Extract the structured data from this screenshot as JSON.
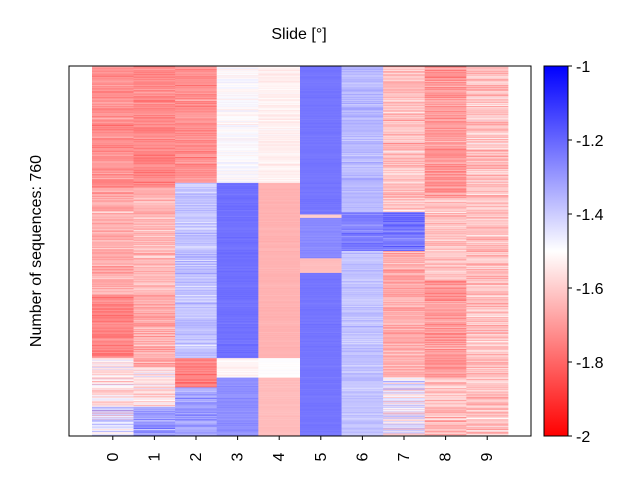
{
  "chart_data": {
    "type": "heatmap",
    "title": "Slide [°]",
    "ylabel": "Number of sequences: 760",
    "xlabel": "",
    "x_tick_labels": [
      "0",
      "1",
      "2",
      "3",
      "4",
      "5",
      "6",
      "7",
      "8",
      "9"
    ],
    "rows": 760,
    "colorbar": {
      "min": -2,
      "max": -1,
      "ticks": [
        -1,
        -1.2,
        -1.4,
        -1.6,
        -1.8,
        -2
      ],
      "tick_labels": [
        "-1",
        "-1.2",
        "-1.4",
        "-1.6",
        "-1.8",
        "-2"
      ],
      "colormap": "bwr",
      "low_color": "#ff0000",
      "mid_color": "#ffffff",
      "high_color": "#0000ff"
    },
    "columns": [
      {
        "label": "0",
        "segments": [
          {
            "from": 0,
            "to": 250,
            "mean": -1.72,
            "spread": 0.12
          },
          {
            "from": 250,
            "to": 470,
            "mean": -1.66,
            "spread": 0.14
          },
          {
            "from": 470,
            "to": 600,
            "mean": -1.74,
            "spread": 0.12
          },
          {
            "from": 600,
            "to": 700,
            "mean": -1.55,
            "spread": 0.22
          },
          {
            "from": 700,
            "to": 760,
            "mean": -1.45,
            "spread": 0.28
          }
        ]
      },
      {
        "label": "1",
        "segments": [
          {
            "from": 0,
            "to": 250,
            "mean": -1.74,
            "spread": 0.12
          },
          {
            "from": 250,
            "to": 470,
            "mean": -1.64,
            "spread": 0.14
          },
          {
            "from": 470,
            "to": 620,
            "mean": -1.66,
            "spread": 0.14
          },
          {
            "from": 620,
            "to": 700,
            "mean": -1.55,
            "spread": 0.2
          },
          {
            "from": 700,
            "to": 760,
            "mean": -1.3,
            "spread": 0.22
          }
        ]
      },
      {
        "label": "2",
        "segments": [
          {
            "from": 0,
            "to": 240,
            "mean": -1.72,
            "spread": 0.12
          },
          {
            "from": 240,
            "to": 600,
            "mean": -1.38,
            "spread": 0.12
          },
          {
            "from": 600,
            "to": 660,
            "mean": -1.75,
            "spread": 0.1
          },
          {
            "from": 660,
            "to": 760,
            "mean": -1.3,
            "spread": 0.14
          }
        ]
      },
      {
        "label": "3",
        "segments": [
          {
            "from": 0,
            "to": 240,
            "mean": -1.5,
            "spread": 0.08
          },
          {
            "from": 240,
            "to": 600,
            "mean": -1.22,
            "spread": 0.03
          },
          {
            "from": 600,
            "to": 640,
            "mean": -1.52,
            "spread": 0.06
          },
          {
            "from": 640,
            "to": 760,
            "mean": -1.28,
            "spread": 0.05
          }
        ]
      },
      {
        "label": "4",
        "segments": [
          {
            "from": 0,
            "to": 240,
            "mean": -1.53,
            "spread": 0.06
          },
          {
            "from": 240,
            "to": 600,
            "mean": -1.65,
            "spread": 0.02
          },
          {
            "from": 600,
            "to": 640,
            "mean": -1.5,
            "spread": 0.02
          },
          {
            "from": 640,
            "to": 760,
            "mean": -1.63,
            "spread": 0.02
          }
        ]
      },
      {
        "label": "5",
        "segments": [
          {
            "from": 0,
            "to": 305,
            "mean": -1.23,
            "spread": 0.02
          },
          {
            "from": 305,
            "to": 312,
            "mean": -1.6,
            "spread": 0.02
          },
          {
            "from": 312,
            "to": 395,
            "mean": -1.27,
            "spread": 0.03
          },
          {
            "from": 395,
            "to": 425,
            "mean": -1.63,
            "spread": 0.02
          },
          {
            "from": 425,
            "to": 760,
            "mean": -1.23,
            "spread": 0.02
          }
        ]
      },
      {
        "label": "6",
        "segments": [
          {
            "from": 0,
            "to": 300,
            "mean": -1.36,
            "spread": 0.08
          },
          {
            "from": 300,
            "to": 380,
            "mean": -1.25,
            "spread": 0.12
          },
          {
            "from": 380,
            "to": 760,
            "mean": -1.38,
            "spread": 0.08
          }
        ]
      },
      {
        "label": "7",
        "segments": [
          {
            "from": 0,
            "to": 300,
            "mean": -1.62,
            "spread": 0.18
          },
          {
            "from": 300,
            "to": 380,
            "mean": -1.22,
            "spread": 0.12
          },
          {
            "from": 380,
            "to": 640,
            "mean": -1.66,
            "spread": 0.14
          },
          {
            "from": 640,
            "to": 760,
            "mean": -1.5,
            "spread": 0.3
          }
        ]
      },
      {
        "label": "8",
        "segments": [
          {
            "from": 0,
            "to": 270,
            "mean": -1.7,
            "spread": 0.14
          },
          {
            "from": 270,
            "to": 440,
            "mean": -1.62,
            "spread": 0.16
          },
          {
            "from": 440,
            "to": 640,
            "mean": -1.7,
            "spread": 0.14
          },
          {
            "from": 640,
            "to": 760,
            "mean": -1.62,
            "spread": 0.2
          }
        ]
      },
      {
        "label": "9",
        "segments": [
          {
            "from": 0,
            "to": 760,
            "mean": -1.62,
            "spread": 0.18
          }
        ]
      }
    ]
  }
}
